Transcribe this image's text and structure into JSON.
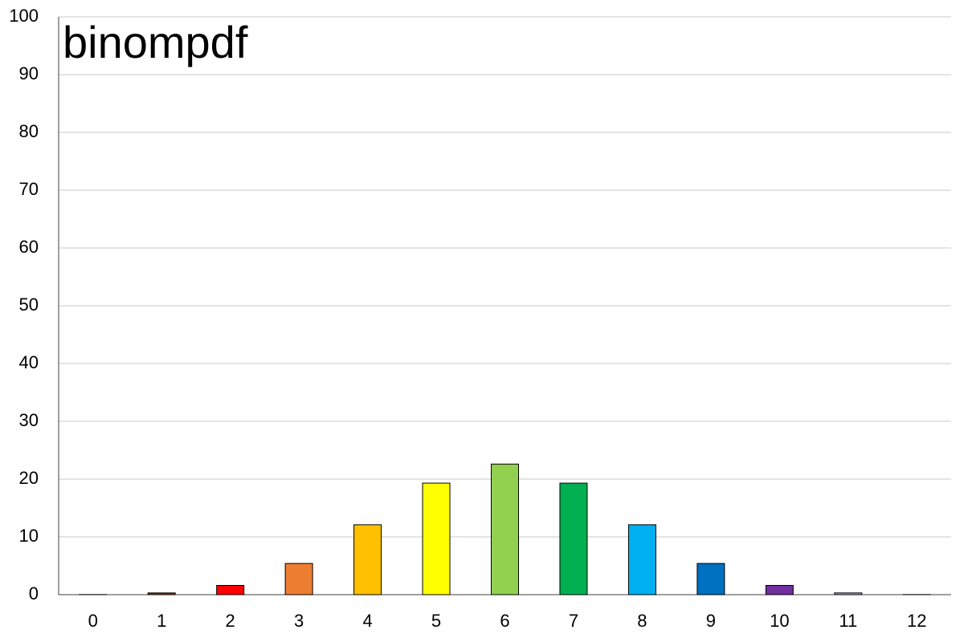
{
  "chart_data": {
    "type": "bar",
    "title": "binompdf",
    "categories": [
      "0",
      "1",
      "2",
      "3",
      "4",
      "5",
      "6",
      "7",
      "8",
      "9",
      "10",
      "11",
      "12"
    ],
    "values": [
      0.02,
      0.3,
      1.6,
      5.4,
      12.1,
      19.3,
      22.6,
      19.3,
      12.1,
      5.4,
      1.6,
      0.3,
      0.02
    ],
    "colors": [
      "#404040",
      "#843c0c",
      "#ff0000",
      "#ed7d31",
      "#ffc000",
      "#ffff00",
      "#92d050",
      "#00b050",
      "#00b0f0",
      "#0070c0",
      "#7030a0",
      "#b4a7d6",
      "#404040"
    ],
    "ylim": [
      0,
      100
    ],
    "yticks": [
      0,
      10,
      20,
      30,
      40,
      50,
      60,
      70,
      80,
      90,
      100
    ],
    "grid": true
  }
}
